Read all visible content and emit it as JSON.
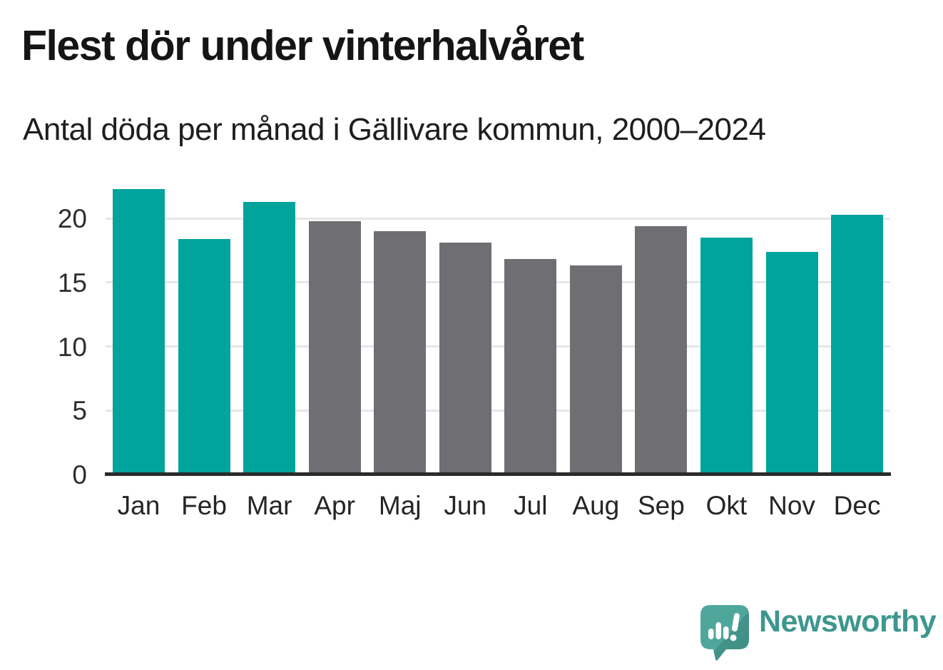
{
  "header": {
    "title": "Flest dör under vinterhalvåret",
    "subtitle": "Antal döda per månad i Gällivare kommun, 2000–2024"
  },
  "chart_data": {
    "type": "bar",
    "title": "Flest dör under vinterhalvåret",
    "subtitle": "Antal döda per månad i Gällivare kommun, 2000–2024",
    "xlabel": "",
    "ylabel": "",
    "categories": [
      "Jan",
      "Feb",
      "Mar",
      "Apr",
      "Maj",
      "Jun",
      "Jul",
      "Aug",
      "Sep",
      "Okt",
      "Nov",
      "Dec"
    ],
    "values": [
      22.3,
      18.4,
      21.3,
      19.8,
      19.0,
      18.1,
      16.8,
      16.3,
      19.4,
      18.5,
      17.4,
      20.3
    ],
    "highlight": [
      true,
      true,
      true,
      false,
      false,
      false,
      false,
      false,
      false,
      true,
      true,
      true
    ],
    "y_ticks": [
      0,
      5,
      10,
      15,
      20
    ],
    "ylim": [
      0,
      22.8
    ],
    "grid": "horizontal",
    "legend": "none",
    "colors": {
      "highlight_winter": "#00a49c",
      "base_summer": "#6e6e73",
      "gridline": "#e7e7e7",
      "axis_line": "#2b2b2b",
      "tick_text": "#2e2e2e"
    }
  },
  "branding": {
    "logo_text": "Newsworthy",
    "logo_text_color": "#3e978e",
    "logo_bubble_color": "#4a9d93",
    "logo_bubble_shade": "#3f8e86"
  }
}
